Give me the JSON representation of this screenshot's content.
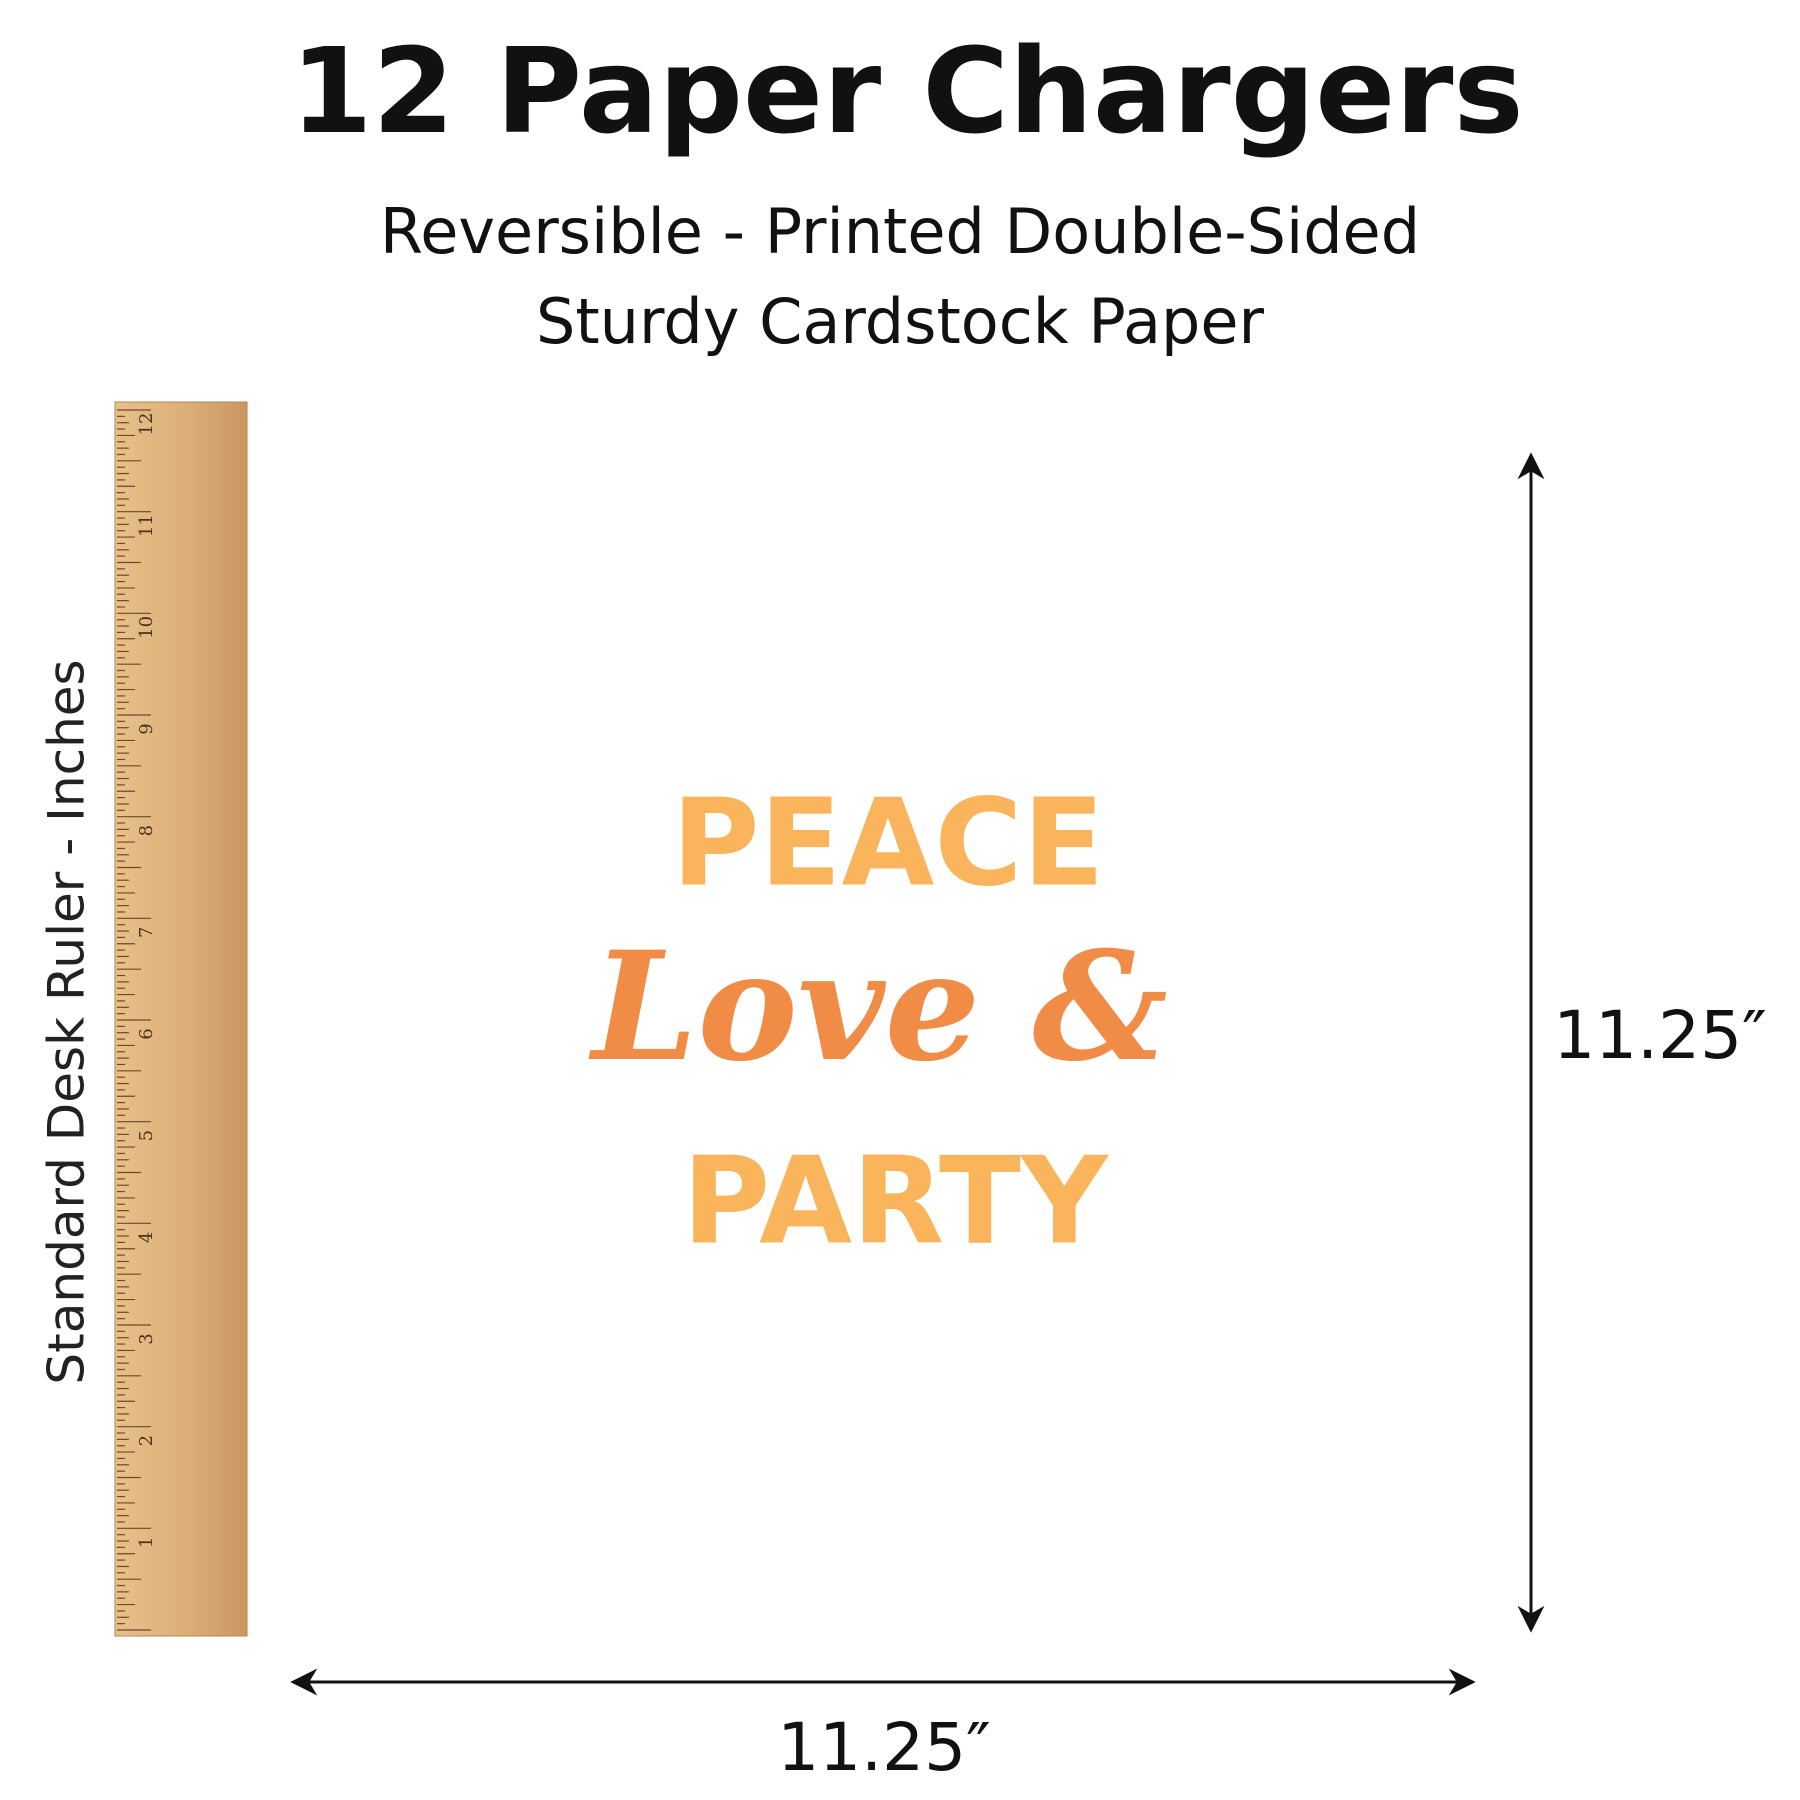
{
  "header": {
    "title": "12 Paper Chargers",
    "subtitle_lines": [
      "Reversible - Printed Double-Sided",
      "Sturdy Cardstock Paper"
    ]
  },
  "ruler": {
    "label": "Standard Desk Ruler - Inches",
    "numbers": [
      "1",
      "2",
      "3",
      "4",
      "5",
      "6",
      "7",
      "8",
      "9",
      "10",
      "11",
      "12"
    ]
  },
  "charger": {
    "text_lines": [
      "PEACE",
      "Love &",
      "PARTY"
    ]
  },
  "dimensions": {
    "height": "11.25″",
    "width": "11.25″"
  }
}
